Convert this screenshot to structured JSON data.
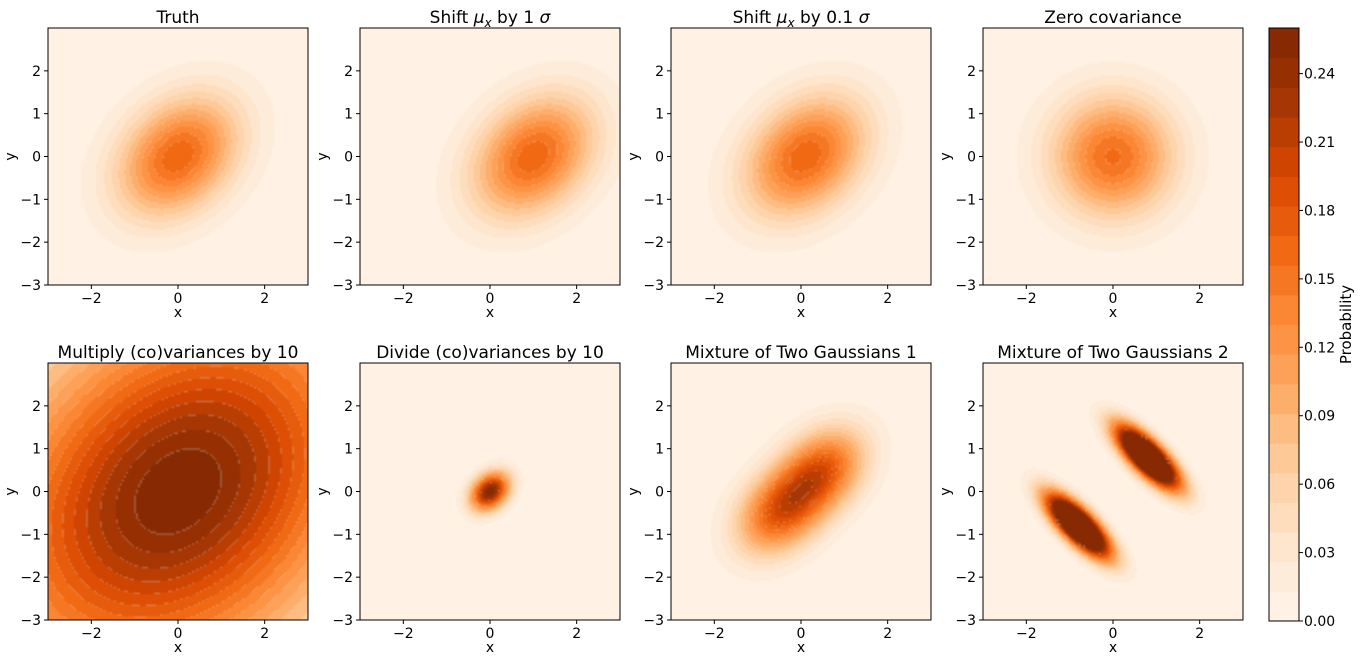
{
  "figure": {
    "colorbar": {
      "label": "Probability",
      "tick_labels": [
        "0.00",
        "0.03",
        "0.06",
        "0.09",
        "0.12",
        "0.15",
        "0.18",
        "0.21",
        "0.24"
      ],
      "tick_values": [
        0.0,
        0.03,
        0.06,
        0.09,
        0.12,
        0.15,
        0.18,
        0.21,
        0.24
      ],
      "range": [
        0.0,
        0.26
      ],
      "levels": 20,
      "colors": [
        "#fff5eb",
        "#fee6ce",
        "#fdd0a2",
        "#fdae6b",
        "#fd8d3c",
        "#f16913",
        "#d94801",
        "#a63603",
        "#7f2704"
      ]
    }
  },
  "chart_data": [
    {
      "type": "heatmap",
      "title_parts": [
        "Truth"
      ],
      "xlabel": "x",
      "ylabel": "y",
      "xlim": [
        -3,
        3
      ],
      "ylim": [
        -3,
        3
      ],
      "x_ticks": [
        -2,
        0,
        2
      ],
      "x_tick_labels": [
        "−2",
        "0",
        "2"
      ],
      "y_ticks": [
        -3,
        -2,
        -1,
        0,
        1,
        2
      ],
      "y_tick_labels": [
        "−3",
        "−2",
        "−1",
        "0",
        "1",
        "2"
      ],
      "components": [
        {
          "weight": 1,
          "mu": [
            0,
            0
          ],
          "cov": [
            [
              1,
              0.3
            ],
            [
              0.3,
              1
            ]
          ]
        }
      ]
    },
    {
      "type": "heatmap",
      "title_parts": [
        "Shift ",
        "μ",
        "x",
        " by 1 ",
        "σ"
      ],
      "xlabel": "x",
      "ylabel": "y",
      "xlim": [
        -3,
        3
      ],
      "ylim": [
        -3,
        3
      ],
      "x_ticks": [
        -2,
        0,
        2
      ],
      "x_tick_labels": [
        "−2",
        "0",
        "2"
      ],
      "y_ticks": [
        -3,
        -2,
        -1,
        0,
        1,
        2
      ],
      "y_tick_labels": [
        "−3",
        "−2",
        "−1",
        "0",
        "1",
        "2"
      ],
      "components": [
        {
          "weight": 1,
          "mu": [
            1,
            0
          ],
          "cov": [
            [
              1,
              0.3
            ],
            [
              0.3,
              1
            ]
          ]
        }
      ]
    },
    {
      "type": "heatmap",
      "title_parts": [
        "Shift ",
        "μ",
        "x",
        " by 0.1 ",
        "σ"
      ],
      "xlabel": "x",
      "ylabel": "y",
      "xlim": [
        -3,
        3
      ],
      "ylim": [
        -3,
        3
      ],
      "x_ticks": [
        -2,
        0,
        2
      ],
      "x_tick_labels": [
        "−2",
        "0",
        "2"
      ],
      "y_ticks": [
        -3,
        -2,
        -1,
        0,
        1,
        2
      ],
      "y_tick_labels": [
        "−3",
        "−2",
        "−1",
        "0",
        "1",
        "2"
      ],
      "components": [
        {
          "weight": 1,
          "mu": [
            0.1,
            0
          ],
          "cov": [
            [
              1,
              0.3
            ],
            [
              0.3,
              1
            ]
          ]
        }
      ]
    },
    {
      "type": "heatmap",
      "title_parts": [
        "Zero covariance"
      ],
      "xlabel": "x",
      "ylabel": "y",
      "xlim": [
        -3,
        3
      ],
      "ylim": [
        -3,
        3
      ],
      "x_ticks": [
        -2,
        0,
        2
      ],
      "x_tick_labels": [
        "−2",
        "0",
        "2"
      ],
      "y_ticks": [
        -3,
        -2,
        -1,
        0,
        1,
        2
      ],
      "y_tick_labels": [
        "−3",
        "−2",
        "−1",
        "0",
        "1",
        "2"
      ],
      "components": [
        {
          "weight": 1,
          "mu": [
            0,
            0
          ],
          "cov": [
            [
              1,
              0
            ],
            [
              0,
              1
            ]
          ]
        }
      ]
    },
    {
      "type": "heatmap",
      "title_parts": [
        "Multiply (co)variances by 10"
      ],
      "xlabel": "x",
      "ylabel": "y",
      "xlim": [
        -3,
        3
      ],
      "ylim": [
        -3,
        3
      ],
      "x_ticks": [
        -2,
        0,
        2
      ],
      "x_tick_labels": [
        "−2",
        "0",
        "2"
      ],
      "y_ticks": [
        -3,
        -2,
        -1,
        0,
        1,
        2
      ],
      "y_tick_labels": [
        "−3",
        "−2",
        "−1",
        "0",
        "1",
        "2"
      ],
      "components": [
        {
          "weight": 1,
          "mu": [
            0,
            0
          ],
          "cov": [
            [
              10,
              3
            ],
            [
              3,
              10
            ]
          ]
        }
      ],
      "self_normalized": true
    },
    {
      "type": "heatmap",
      "title_parts": [
        "Divide (co)variances by 10"
      ],
      "xlabel": "x",
      "ylabel": "y",
      "xlim": [
        -3,
        3
      ],
      "ylim": [
        -3,
        3
      ],
      "x_ticks": [
        -2,
        0,
        2
      ],
      "x_tick_labels": [
        "−2",
        "0",
        "2"
      ],
      "y_ticks": [
        -3,
        -2,
        -1,
        0,
        1,
        2
      ],
      "y_tick_labels": [
        "−3",
        "−2",
        "−1",
        "0",
        "1",
        "2"
      ],
      "components": [
        {
          "weight": 1,
          "mu": [
            0,
            0
          ],
          "cov": [
            [
              0.1,
              0.03
            ],
            [
              0.03,
              0.1
            ]
          ]
        }
      ],
      "self_normalized": true
    },
    {
      "type": "heatmap",
      "title_parts": [
        "Mixture of Two Gaussians 1"
      ],
      "xlabel": "x",
      "ylabel": "y",
      "xlim": [
        -3,
        3
      ],
      "ylim": [
        -3,
        3
      ],
      "x_ticks": [
        -2,
        0,
        2
      ],
      "x_tick_labels": [
        "−2",
        "0",
        "2"
      ],
      "y_ticks": [
        -3,
        -2,
        -1,
        0,
        1,
        2
      ],
      "y_tick_labels": [
        "−3",
        "−2",
        "−1",
        "0",
        "1",
        "2"
      ],
      "components": [
        {
          "weight": 0.5,
          "mu": [
            -0.5,
            -0.5
          ],
          "cov": [
            [
              0.5,
              0.15
            ],
            [
              0.15,
              0.5
            ]
          ]
        },
        {
          "weight": 0.5,
          "mu": [
            0.5,
            0.5
          ],
          "cov": [
            [
              0.5,
              0.15
            ],
            [
              0.15,
              0.5
            ]
          ]
        }
      ]
    },
    {
      "type": "heatmap",
      "title_parts": [
        "Mixture of Two Gaussians 2"
      ],
      "xlabel": "x",
      "ylabel": "y",
      "xlim": [
        -3,
        3
      ],
      "ylim": [
        -3,
        3
      ],
      "x_ticks": [
        -2,
        0,
        2
      ],
      "x_tick_labels": [
        "−2",
        "0",
        "2"
      ],
      "y_ticks": [
        -3,
        -2,
        -1,
        0,
        1,
        2
      ],
      "y_tick_labels": [
        "−3",
        "−2",
        "−1",
        "0",
        "1",
        "2"
      ],
      "components": [
        {
          "weight": 0.5,
          "mu": [
            -0.8,
            -0.8
          ],
          "cov": [
            [
              0.25,
              -0.19
            ],
            [
              -0.19,
              0.25
            ]
          ]
        },
        {
          "weight": 0.5,
          "mu": [
            0.8,
            0.8
          ],
          "cov": [
            [
              0.25,
              -0.19
            ],
            [
              -0.19,
              0.25
            ]
          ]
        }
      ]
    }
  ]
}
